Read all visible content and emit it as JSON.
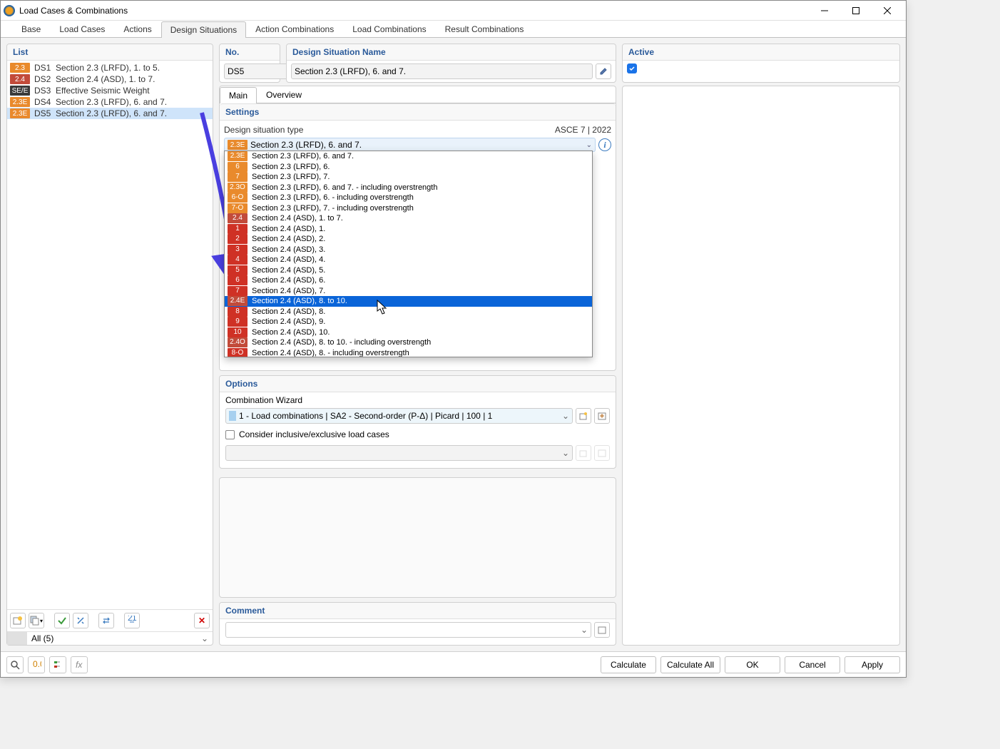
{
  "window": {
    "title": "Load Cases & Combinations"
  },
  "tabs": [
    "Base",
    "Load Cases",
    "Actions",
    "Design Situations",
    "Action Combinations",
    "Load Combinations",
    "Result Combinations"
  ],
  "active_tab_index": 3,
  "left": {
    "header": "List",
    "rows": [
      {
        "tag": "2.3",
        "tag_color": "#e98a2c",
        "id": "DS1",
        "label": "Section 2.3 (LRFD), 1. to 5."
      },
      {
        "tag": "2.4",
        "tag_color": "#c24b3a",
        "id": "DS2",
        "label": "Section 2.4 (ASD), 1. to 7."
      },
      {
        "tag": "SE/E",
        "tag_color": "#3a3a3a",
        "id": "DS3",
        "label": "Effective Seismic Weight"
      },
      {
        "tag": "2.3E",
        "tag_color": "#e98a2c",
        "id": "DS4",
        "label": "Section 2.3 (LRFD), 6. and 7."
      },
      {
        "tag": "2.3E",
        "tag_color": "#e98a2c",
        "id": "DS5",
        "label": "Section 2.3 (LRFD), 6. and 7.",
        "selected": true
      }
    ],
    "filter": "All (5)"
  },
  "no": {
    "header": "No.",
    "value": "DS5"
  },
  "name": {
    "header": "Design Situation Name",
    "value": "Section 2.3 (LRFD), 6. and 7."
  },
  "active": {
    "header": "Active",
    "checked": true
  },
  "subtabs": [
    "Main",
    "Overview"
  ],
  "active_subtab_index": 0,
  "settings": {
    "header": "Settings",
    "type_label": "Design situation type",
    "standard": "ASCE 7 | 2022",
    "selected_text": "Section 2.3 (LRFD), 6. and 7.",
    "selected_tag": "2.3E",
    "selected_tag_color": "#e98a2c",
    "options": [
      {
        "tag": "2.3E",
        "tag_color": "#e98a2c",
        "text": "Section 2.3 (LRFD), 6. and 7."
      },
      {
        "tag": "6",
        "tag_color": "#e98a2c",
        "text": "Section 2.3 (LRFD), 6."
      },
      {
        "tag": "7",
        "tag_color": "#e98a2c",
        "text": "Section 2.3 (LRFD), 7."
      },
      {
        "tag": "2.3O",
        "tag_color": "#e98a2c",
        "text": "Section 2.3 (LRFD), 6. and 7. - including overstrength"
      },
      {
        "tag": "6-O",
        "tag_color": "#e98a2c",
        "text": "Section 2.3 (LRFD), 6. - including overstrength"
      },
      {
        "tag": "7-O",
        "tag_color": "#e98a2c",
        "text": "Section 2.3 (LRFD), 7. - including overstrength"
      },
      {
        "tag": "2.4",
        "tag_color": "#c24b3a",
        "text": "Section 2.4 (ASD), 1. to 7."
      },
      {
        "tag": "1",
        "tag_color": "#cf3125",
        "text": "Section 2.4 (ASD), 1."
      },
      {
        "tag": "2",
        "tag_color": "#cf3125",
        "text": "Section 2.4 (ASD), 2."
      },
      {
        "tag": "3",
        "tag_color": "#cf3125",
        "text": "Section 2.4 (ASD), 3."
      },
      {
        "tag": "4",
        "tag_color": "#cf3125",
        "text": "Section 2.4 (ASD), 4."
      },
      {
        "tag": "5",
        "tag_color": "#cf3125",
        "text": "Section 2.4 (ASD), 5."
      },
      {
        "tag": "6",
        "tag_color": "#cf3125",
        "text": "Section 2.4 (ASD), 6."
      },
      {
        "tag": "7",
        "tag_color": "#cf3125",
        "text": "Section 2.4 (ASD), 7."
      },
      {
        "tag": "2.4E",
        "tag_color": "#c24b3a",
        "text": "Section 2.4 (ASD), 8. to 10.",
        "hover": true
      },
      {
        "tag": "8",
        "tag_color": "#cf3125",
        "text": "Section 2.4 (ASD), 8."
      },
      {
        "tag": "9",
        "tag_color": "#cf3125",
        "text": "Section 2.4 (ASD), 9."
      },
      {
        "tag": "10",
        "tag_color": "#cf3125",
        "text": "Section 2.4 (ASD), 10."
      },
      {
        "tag": "2.4O",
        "tag_color": "#c24b3a",
        "text": "Section 2.4 (ASD), 8. to 10. - including overstrength"
      },
      {
        "tag": "8-O",
        "tag_color": "#cf3125",
        "text": "Section 2.4 (ASD), 8. - including overstrength"
      }
    ]
  },
  "opts": {
    "header": "Options",
    "combowiz_label": "Combination Wizard",
    "combowiz_value": "1 - Load combinations | SA2 - Second-order (P-Δ) | Picard | 100 | 1",
    "consider_label": "Consider inclusive/exclusive load cases"
  },
  "comment": {
    "header": "Comment",
    "value": ""
  },
  "footer": {
    "calculate": "Calculate",
    "calculate_all": "Calculate All",
    "ok": "OK",
    "cancel": "Cancel",
    "apply": "Apply"
  },
  "annotation": {
    "arrow_color": "#4a3fe0"
  }
}
